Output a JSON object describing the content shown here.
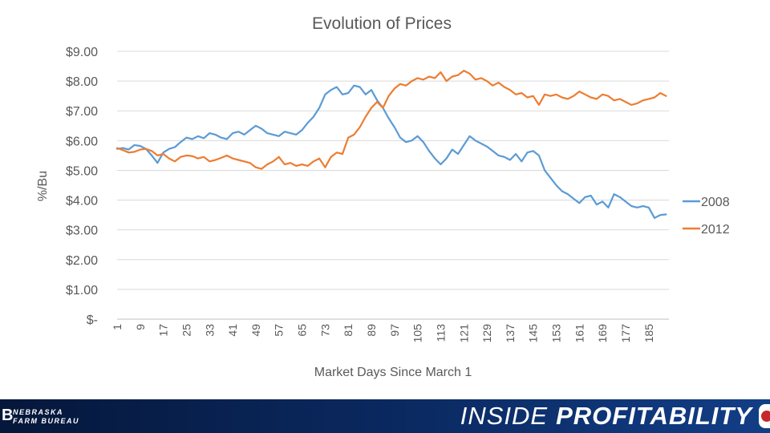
{
  "chart_data": {
    "type": "line",
    "title": "Evolution of Prices",
    "xlabel": "Market Days Since March 1",
    "ylabel": "%/Bu",
    "ylim": [
      0,
      9
    ],
    "xlim": [
      1,
      192
    ],
    "yticks": [
      {
        "value": 9,
        "label": "$9.00"
      },
      {
        "value": 8,
        "label": "$8.00"
      },
      {
        "value": 7,
        "label": "$7.00"
      },
      {
        "value": 6,
        "label": "$6.00"
      },
      {
        "value": 5,
        "label": "$5.00"
      },
      {
        "value": 4,
        "label": "$4.00"
      },
      {
        "value": 3,
        "label": "$3.00"
      },
      {
        "value": 2,
        "label": "$2.00"
      },
      {
        "value": 1,
        "label": "$1.00"
      },
      {
        "value": 0,
        "label": "$-"
      }
    ],
    "xticks": [
      1,
      9,
      17,
      25,
      33,
      41,
      49,
      57,
      65,
      73,
      81,
      89,
      97,
      105,
      113,
      121,
      129,
      137,
      145,
      153,
      161,
      169,
      177,
      185
    ],
    "grid": "horizontal",
    "legend_position": "right",
    "series": [
      {
        "name": "2008",
        "color": "#5b9bd5",
        "x": [
          1,
          3,
          5,
          7,
          9,
          11,
          13,
          15,
          17,
          19,
          21,
          23,
          25,
          27,
          29,
          31,
          33,
          35,
          37,
          39,
          41,
          43,
          45,
          47,
          49,
          51,
          53,
          55,
          57,
          59,
          61,
          63,
          65,
          67,
          69,
          71,
          73,
          75,
          77,
          79,
          81,
          83,
          85,
          87,
          89,
          91,
          93,
          95,
          97,
          99,
          101,
          103,
          105,
          107,
          109,
          111,
          113,
          115,
          117,
          119,
          121,
          123,
          125,
          127,
          129,
          131,
          133,
          135,
          137,
          139,
          141,
          143,
          145,
          147,
          149,
          151,
          153,
          155,
          157,
          159,
          161,
          163,
          165,
          167,
          169,
          171,
          173,
          175,
          177,
          179,
          181,
          183,
          185,
          187,
          189,
          191
        ],
        "values": [
          5.72,
          5.75,
          5.7,
          5.85,
          5.82,
          5.72,
          5.5,
          5.25,
          5.6,
          5.72,
          5.78,
          5.95,
          6.1,
          6.05,
          6.15,
          6.08,
          6.25,
          6.2,
          6.1,
          6.05,
          6.25,
          6.3,
          6.2,
          6.35,
          6.5,
          6.4,
          6.25,
          6.2,
          6.15,
          6.3,
          6.25,
          6.2,
          6.35,
          6.6,
          6.8,
          7.1,
          7.55,
          7.7,
          7.8,
          7.55,
          7.6,
          7.85,
          7.8,
          7.55,
          7.7,
          7.35,
          7.1,
          6.75,
          6.45,
          6.1,
          5.95,
          6.0,
          6.15,
          5.95,
          5.65,
          5.4,
          5.2,
          5.4,
          5.7,
          5.55,
          5.85,
          6.15,
          6.0,
          5.9,
          5.8,
          5.65,
          5.5,
          5.45,
          5.35,
          5.55,
          5.3,
          5.6,
          5.65,
          5.5,
          5.0,
          4.75,
          4.5,
          4.3,
          4.2,
          4.05,
          3.9,
          4.1,
          4.15,
          3.85,
          3.95,
          3.75,
          4.2,
          4.1,
          3.95,
          3.8,
          3.75,
          3.8,
          3.75,
          3.4,
          3.5,
          3.52
        ]
      },
      {
        "name": "2012",
        "color": "#ed7d31",
        "x": [
          1,
          3,
          5,
          7,
          9,
          11,
          13,
          15,
          17,
          19,
          21,
          23,
          25,
          27,
          29,
          31,
          33,
          35,
          37,
          39,
          41,
          43,
          45,
          47,
          49,
          51,
          53,
          55,
          57,
          59,
          61,
          63,
          65,
          67,
          69,
          71,
          73,
          75,
          77,
          79,
          81,
          83,
          85,
          87,
          89,
          91,
          93,
          95,
          97,
          99,
          101,
          103,
          105,
          107,
          109,
          111,
          113,
          115,
          117,
          119,
          121,
          123,
          125,
          127,
          129,
          131,
          133,
          135,
          137,
          139,
          141,
          143,
          145,
          147,
          149,
          151,
          153,
          155,
          157,
          159,
          161,
          163,
          165,
          167,
          169,
          171,
          173,
          175,
          177,
          179,
          181,
          183,
          185,
          187,
          189,
          191
        ],
        "values": [
          5.75,
          5.68,
          5.6,
          5.62,
          5.7,
          5.72,
          5.65,
          5.5,
          5.55,
          5.4,
          5.3,
          5.45,
          5.5,
          5.48,
          5.4,
          5.45,
          5.3,
          5.35,
          5.42,
          5.5,
          5.4,
          5.35,
          5.3,
          5.25,
          5.1,
          5.05,
          5.2,
          5.3,
          5.45,
          5.2,
          5.25,
          5.15,
          5.2,
          5.15,
          5.3,
          5.4,
          5.1,
          5.45,
          5.6,
          5.55,
          6.1,
          6.2,
          6.45,
          6.8,
          7.1,
          7.3,
          7.1,
          7.5,
          7.75,
          7.9,
          7.85,
          8.0,
          8.1,
          8.05,
          8.15,
          8.1,
          8.3,
          8.0,
          8.15,
          8.2,
          8.35,
          8.25,
          8.05,
          8.1,
          8.0,
          7.85,
          7.95,
          7.8,
          7.7,
          7.55,
          7.6,
          7.45,
          7.5,
          7.2,
          7.55,
          7.5,
          7.55,
          7.45,
          7.4,
          7.5,
          7.65,
          7.55,
          7.45,
          7.4,
          7.55,
          7.5,
          7.35,
          7.4,
          7.3,
          7.2,
          7.25,
          7.35,
          7.4,
          7.45,
          7.6,
          7.5
        ]
      }
    ]
  },
  "footer": {
    "logo_mark": "B",
    "logo_line1": "NEBRASKA",
    "logo_line2": "FARM BUREAU",
    "show_title_part1": "INSIDE",
    "show_title_part2": "PROFITABILITY",
    "bar_color": "#0b2a63",
    "badge_color": "#c8262e"
  }
}
